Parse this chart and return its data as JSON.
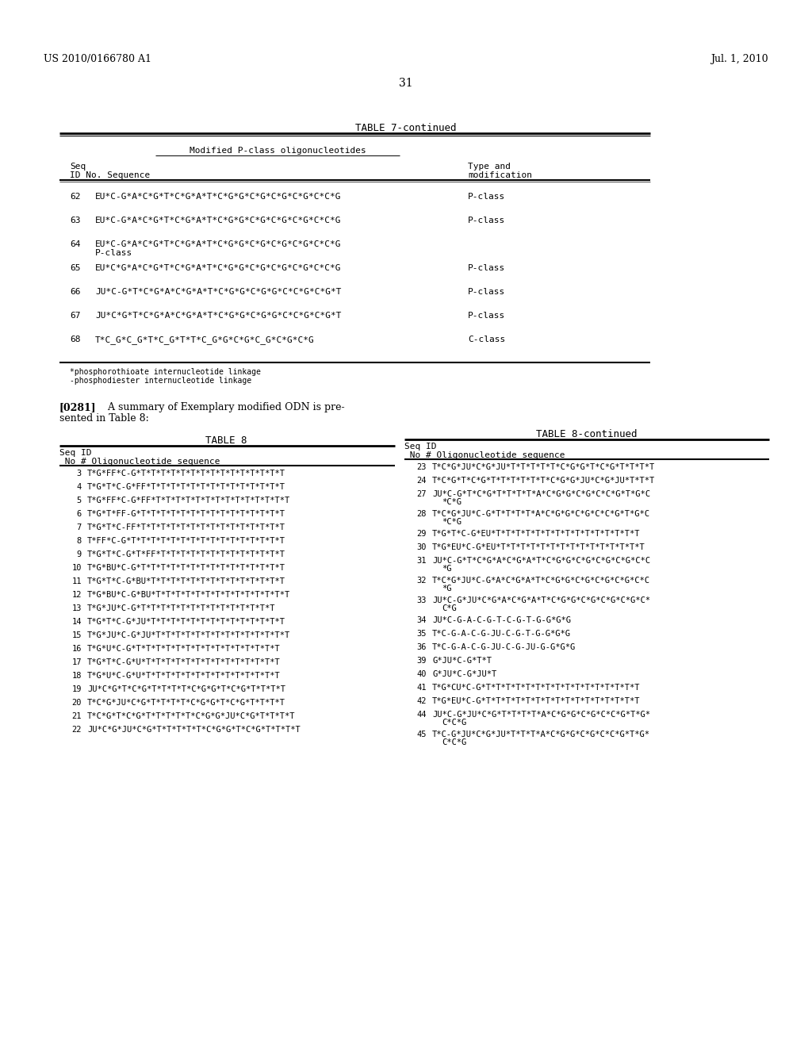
{
  "header_left": "US 2010/0166780 A1",
  "header_right": "Jul. 1, 2010",
  "page_number": "31",
  "bg_color": "#ffffff",
  "table7_rows": [
    [
      "62",
      "EU*C-G*A*C*G*T*C*G*A*T*C*G*G*C*G*C*G*C*G*C*C*G",
      "P-class"
    ],
    [
      "63",
      "EU*C-G*A*C*G*T*C*G*A*T*C*G*G*C*G*C*G*C*G*C*C*G",
      "P-class"
    ],
    [
      "64",
      "EU*C-G*A*C*G*T*C*G*A*T*C*G*G*C*G*C*G*C*G*C*C*G",
      "P-class_wrap"
    ],
    [
      "65",
      "EU*C*G*A*C*G*T*C*G*A*T*C*G*G*C*G*C*G*C*G*C*C*G",
      "P-class"
    ],
    [
      "66",
      "JU*C-G*T*C*G*A*C*G*A*T*C*G*G*C*G*G*C*C*G*C*G*T",
      "P-class"
    ],
    [
      "67",
      "JU*C*G*T*C*G*A*C*G*A*T*C*G*G*C*G*G*C*C*G*C*G*T",
      "P-class"
    ],
    [
      "68",
      "T*C_G*C_G*T*C_G*T*T*C_G*G*C*G*C_G*C*G*C*G",
      "C-class"
    ]
  ],
  "table8_left_rows": [
    [
      "3",
      "T*G*FF*C-G*T*T*T*T*T*T*T*T*T*T*T*T*T*T*T"
    ],
    [
      "4",
      "T*G*T*C-G*FF*T*T*T*T*T*T*T*T*T*T*T*T*T*T"
    ],
    [
      "5",
      "T*G*FF*C-G*FF*T*T*T*T*T*T*T*T*T*T*T*T*T*T"
    ],
    [
      "6",
      "T*G*T*FF-G*T*T*T*T*T*T*T*T*T*T*T*T*T*T*T"
    ],
    [
      "7",
      "T*G*T*C-FF*T*T*T*T*T*T*T*T*T*T*T*T*T*T*T"
    ],
    [
      "8",
      "T*FF*C-G*T*T*T*T*T*T*T*T*T*T*T*T*T*T*T*T"
    ],
    [
      "9",
      "T*G*T*C-G*T*FF*T*T*T*T*T*T*T*T*T*T*T*T*T"
    ],
    [
      "10",
      "T*G*BU*C-G*T*T*T*T*T*T*T*T*T*T*T*T*T*T*T"
    ],
    [
      "11",
      "T*G*T*C-G*BU*T*T*T*T*T*T*T*T*T*T*T*T*T*T"
    ],
    [
      "12",
      "T*G*BU*C-G*BU*T*T*T*T*T*T*T*T*T*T*T*T*T*T"
    ],
    [
      "13",
      "T*G*JU*C-G*T*T*T*T*T*T*T*T*T*T*T*T*T*T"
    ],
    [
      "14",
      "T*G*T*C-G*JU*T*T*T*T*T*T*T*T*T*T*T*T*T*T"
    ],
    [
      "15",
      "T*G*JU*C-G*JU*T*T*T*T*T*T*T*T*T*T*T*T*T*T"
    ],
    [
      "16",
      "T*G*U*C-G*T*T*T*T*T*T*T*T*T*T*T*T*T*T*T"
    ],
    [
      "17",
      "T*G*T*C-G*U*T*T*T*T*T*T*T*T*T*T*T*T*T*T"
    ],
    [
      "18",
      "T*G*U*C-G*U*T*T*T*T*T*T*T*T*T*T*T*T*T*T"
    ],
    [
      "19",
      "JU*C*G*T*C*G*T*T*T*T*C*G*G*T*C*G*T*T*T*T"
    ],
    [
      "20",
      "T*C*G*JU*C*G*T*T*T*T*C*G*G*T*C*G*T*T*T*T"
    ],
    [
      "21",
      "T*C*G*T*C*G*T*T*T*T*T*C*G*G*JU*C*G*T*T*T*T"
    ],
    [
      "22",
      "JU*C*G*JU*C*G*T*T*T*T*T*C*G*G*T*C*G*T*T*T*T"
    ]
  ],
  "table8_right_rows": [
    [
      "23",
      [
        "T*C*G*JU*C*G*JU*T*T*T*T*T*C*G*G*T*C*G*T*T*T*T"
      ],
      false
    ],
    [
      "24",
      [
        "T*C*G*T*C*G*T*T*T*T*T*T*C*G*G*JU*C*G*JU*T*T*T"
      ],
      false
    ],
    [
      "27",
      [
        "JU*C-G*T*C*G*T*T*T*T*A*C*G*G*C*G*C*C*G*T*G*C",
        "*C*G"
      ],
      true
    ],
    [
      "28",
      [
        "T*C*G*JU*C-G*T*T*T*T*A*C*G*G*C*G*C*C*G*T*G*C",
        "*C*G"
      ],
      true
    ],
    [
      "29",
      [
        "T*G*T*C-G*EU*T*T*T*T*T*T*T*T*T*T*T*T*T*T*T"
      ],
      false
    ],
    [
      "30",
      [
        "T*G*EU*C-G*EU*T*T*T*T*T*T*T*T*T*T*T*T*T*T*T"
      ],
      false
    ],
    [
      "31",
      [
        "JU*C-G*T*C*G*A*C*G*A*T*C*G*G*C*G*C*G*C*G*C*C",
        "*G"
      ],
      true
    ],
    [
      "32",
      [
        "T*C*G*JU*C-G*A*C*G*A*T*C*G*G*C*G*C*G*C*G*C*C",
        "*G"
      ],
      true
    ],
    [
      "33",
      [
        "JU*C-G*JU*C*G*A*C*G*A*T*C*G*G*C*G*C*G*C*G*C*",
        "C*G"
      ],
      true
    ],
    [
      "34",
      [
        "JU*C-G-A-C-G-T-C-G-T-G-G*G*G"
      ],
      false
    ],
    [
      "35",
      [
        "T*C-G-A-C-G-JU-C-G-T-G-G*G*G"
      ],
      false
    ],
    [
      "36",
      [
        "T*C-G-A-C-G-JU-C-G-JU-G-G*G*G"
      ],
      false
    ],
    [
      "39",
      [
        "G*JU*C-G*T*T"
      ],
      false
    ],
    [
      "40",
      [
        "G*JU*C-G*JU*T"
      ],
      false
    ],
    [
      "41",
      [
        "T*G*CU*C-G*T*T*T*T*T*T*T*T*T*T*T*T*T*T*T*T"
      ],
      false
    ],
    [
      "42",
      [
        "T*G*EU*C-G*T*T*T*T*T*T*T*T*T*T*T*T*T*T*T*T"
      ],
      false
    ],
    [
      "44",
      [
        "JU*C-G*JU*C*G*T*T*T*T*A*C*G*G*C*G*C*C*G*T*G*",
        "C*C*G"
      ],
      true
    ],
    [
      "45",
      [
        "T*C-G*JU*C*G*JU*T*T*T*A*C*G*G*C*G*C*C*G*T*G*",
        "C*C*G"
      ],
      true
    ]
  ]
}
